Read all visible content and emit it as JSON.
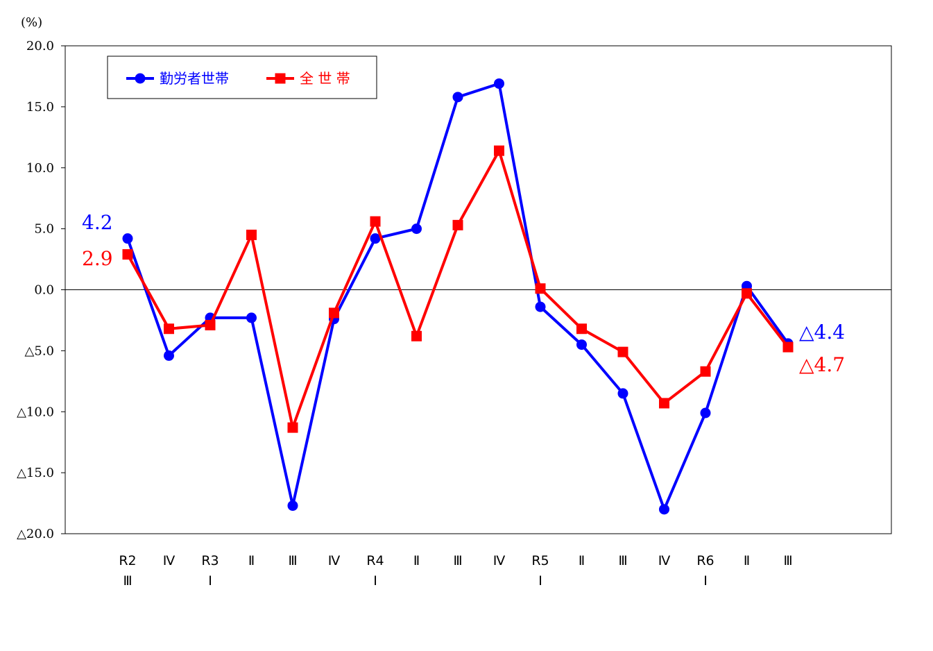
{
  "chart_data": {
    "type": "line",
    "unit_label": "(%)",
    "ylim": [
      -20,
      20
    ],
    "yticks": [
      {
        "value": 20,
        "label": "20.0"
      },
      {
        "value": 15,
        "label": "15.0"
      },
      {
        "value": 10,
        "label": "10.0"
      },
      {
        "value": 5,
        "label": "5.0"
      },
      {
        "value": 0,
        "label": "0.0"
      },
      {
        "value": -5,
        "label": "△5.0"
      },
      {
        "value": -10,
        "label": "△10.0"
      },
      {
        "value": -15,
        "label": "△15.0"
      },
      {
        "value": -20,
        "label": "△20.0"
      }
    ],
    "categories": [
      [
        "R2",
        "Ⅲ"
      ],
      [
        "Ⅳ"
      ],
      [
        "R3",
        "Ⅰ"
      ],
      [
        "Ⅱ"
      ],
      [
        "Ⅲ"
      ],
      [
        "Ⅳ"
      ],
      [
        "R4",
        "Ⅰ"
      ],
      [
        "Ⅱ"
      ],
      [
        "Ⅲ"
      ],
      [
        "Ⅳ"
      ],
      [
        "R5",
        "Ⅰ"
      ],
      [
        "Ⅱ"
      ],
      [
        "Ⅲ"
      ],
      [
        "Ⅳ"
      ],
      [
        "R6",
        "Ⅰ"
      ],
      [
        "Ⅱ"
      ],
      [
        "Ⅲ"
      ]
    ],
    "grid": false,
    "legend_position": "top-left",
    "series": [
      {
        "name": "勤労者世帯",
        "color": "#0000ff",
        "marker": "circle",
        "values": [
          4.2,
          -5.4,
          -2.3,
          -2.3,
          -17.7,
          -2.4,
          4.2,
          5.0,
          15.8,
          16.9,
          -1.4,
          -4.5,
          -8.5,
          -18.0,
          -10.1,
          0.3,
          -4.4
        ]
      },
      {
        "name": "全 世 帯",
        "color": "#ff0000",
        "marker": "square",
        "values": [
          2.9,
          -3.2,
          -2.9,
          4.5,
          -11.3,
          -1.9,
          5.6,
          -3.8,
          5.3,
          11.4,
          0.1,
          -3.2,
          -5.1,
          -9.3,
          -6.7,
          -0.3,
          -4.7
        ]
      }
    ],
    "annotations": [
      {
        "text": "4.2",
        "color": "#0000ff",
        "series": 0,
        "index": 0
      },
      {
        "text": "2.9",
        "color": "#ff0000",
        "series": 1,
        "index": 0
      },
      {
        "text": "△4.4",
        "color": "#0000ff",
        "series": 0,
        "index": 16
      },
      {
        "text": "△4.7",
        "color": "#ff0000",
        "series": 1,
        "index": 16
      }
    ]
  }
}
